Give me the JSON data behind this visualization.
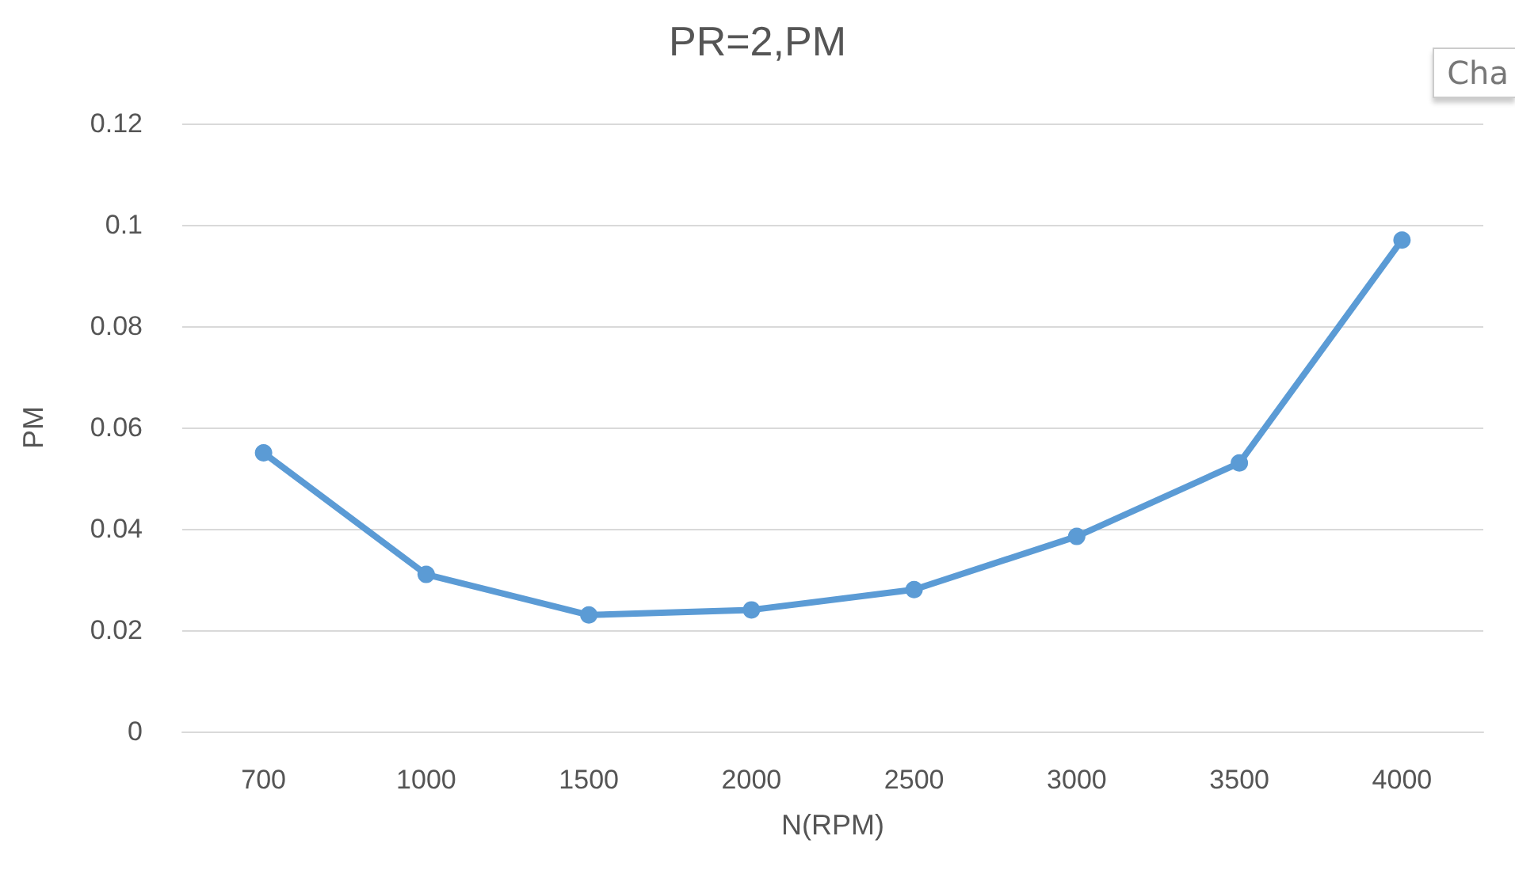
{
  "chart_data": {
    "type": "line",
    "title": "PR=2,PM",
    "xlabel": "N(RPM)",
    "ylabel": "PM",
    "categories": [
      "700",
      "1000",
      "1500",
      "2000",
      "2500",
      "3000",
      "3500",
      "4000"
    ],
    "series": [
      {
        "color": "#5b9bd5",
        "values": [
          0.055,
          0.031,
          0.023,
          0.024,
          0.028,
          0.0385,
          0.053,
          0.097
        ]
      }
    ],
    "ylim": [
      0,
      0.12
    ],
    "yticks": [
      0,
      0.02,
      0.04,
      0.06,
      0.08,
      0.1,
      0.12
    ],
    "grid": "y",
    "marker": "circle",
    "line_style": "solid",
    "annotations": [
      "Cha"
    ]
  }
}
